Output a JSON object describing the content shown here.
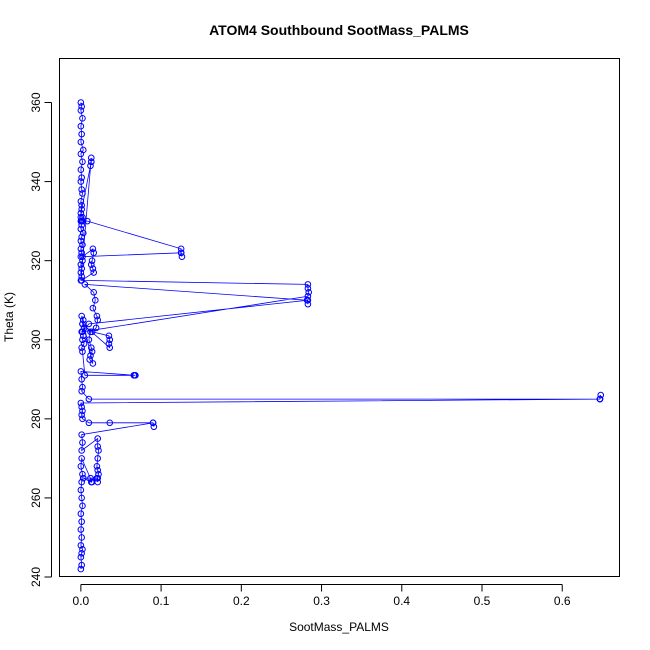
{
  "colors": {
    "series": "#0000ff",
    "background": "#ffffff",
    "axis": "#000000"
  },
  "chart_data": {
    "type": "scatter",
    "title": "ATOM4 Southbound SootMass_PALMS",
    "xlabel": "SootMass_PALMS",
    "ylabel": "Theta (K)",
    "xlim": [
      -0.026,
      0.672
    ],
    "ylim": [
      240,
      371
    ],
    "xticks": [
      0.0,
      0.1,
      0.2,
      0.3,
      0.4,
      0.5,
      0.6
    ],
    "xtick_labels": [
      "0.0",
      "0.1",
      "0.2",
      "0.3",
      "0.4",
      "0.5",
      "0.6"
    ],
    "yticks": [
      240,
      260,
      280,
      300,
      320,
      340,
      360
    ],
    "ytick_labels": [
      "240",
      "260",
      "280",
      "300",
      "320",
      "340",
      "360"
    ],
    "grid": false,
    "marker": "open-circle",
    "connected": true,
    "series": [
      {
        "x": [
          0.0,
          0.001,
          0.0,
          0.002,
          0.0,
          0.001,
          0.0,
          0.003,
          0.0,
          0.002,
          0.0,
          0.001,
          0.0,
          0.001,
          0.002,
          0.0,
          0.001,
          0.0,
          0.002,
          0.0,
          0.001,
          0.0,
          0.003,
          0.001,
          0.0,
          0.002,
          0.0,
          0.001,
          0.0,
          0.002,
          0.0,
          0.001,
          0.0,
          0.001,
          0.0,
          0.013,
          0.013,
          0.012,
          0.013,
          0.001,
          0.0,
          0.002,
          0.001,
          0.008,
          0.125,
          0.125,
          0.126,
          0.125,
          0.002,
          0.015,
          0.016,
          0.014,
          0.013,
          0.015,
          0.016,
          0.001,
          0.283,
          0.283,
          0.284,
          0.283,
          0.002,
          0.01,
          0.283,
          0.283,
          0.282,
          0.005,
          0.016,
          0.018,
          0.015,
          0.02,
          0.021,
          0.019,
          0.014,
          0.035,
          0.036,
          0.035,
          0.036,
          0.002,
          0.012,
          0.01,
          0.013,
          0.014,
          0.012,
          0.011,
          0.015,
          0.001,
          0.003,
          0.002,
          0.004,
          0.001,
          0.003,
          0.002,
          0.004,
          0.001,
          0.002,
          0.005,
          0.066,
          0.068,
          0.067,
          0.0,
          0.001,
          0.002,
          0.001,
          0.01,
          0.647,
          0.647,
          0.648,
          0.647,
          0.0,
          0.001,
          0.002,
          0.001,
          0.002,
          0.01,
          0.036,
          0.09,
          0.091,
          0.09,
          0.001,
          0.002,
          0.001,
          0.021,
          0.021,
          0.022,
          0.021,
          0.02,
          0.021,
          0.022,
          0.02,
          0.021,
          0.021,
          0.003,
          0.013,
          0.012,
          0.014,
          0.001,
          0.0,
          0.002,
          0.001,
          0.0,
          0.001,
          0.002,
          0.0,
          0.001,
          0.0,
          0.001,
          0.0,
          0.002,
          0.001,
          0.0,
          0.001,
          0.0
        ],
        "y": [
          360,
          359,
          358,
          356,
          354,
          352,
          350,
          348,
          347,
          345,
          343,
          341,
          340,
          338,
          337,
          335,
          334,
          332,
          331,
          330,
          329,
          328,
          327,
          326,
          325,
          324,
          323,
          322,
          321,
          320,
          319,
          318,
          317,
          316,
          315,
          346,
          345,
          344,
          345,
          333,
          331,
          330,
          330,
          330,
          323,
          322,
          321,
          322,
          321,
          323,
          322,
          320,
          319,
          318,
          317,
          315,
          314,
          313,
          312,
          311,
          302,
          304,
          310,
          309,
          310,
          314,
          312,
          310,
          308,
          306,
          305,
          303,
          302,
          301,
          300,
          299,
          298,
          304,
          302,
          300,
          298,
          297,
          296,
          295,
          294,
          306,
          305,
          304,
          303,
          302,
          301,
          300,
          299,
          298,
          297,
          291,
          291,
          291,
          291,
          292,
          290,
          288,
          287,
          285,
          285,
          285,
          286,
          285,
          284,
          283,
          282,
          281,
          280,
          279,
          279,
          279,
          278,
          279,
          276,
          274,
          272,
          275,
          273,
          272,
          270,
          268,
          267,
          266,
          265,
          264,
          265,
          265,
          264,
          265,
          264,
          270,
          268,
          266,
          264,
          262,
          260,
          258,
          256,
          254,
          252,
          250,
          248,
          247,
          246,
          245,
          243,
          242
        ]
      }
    ]
  }
}
